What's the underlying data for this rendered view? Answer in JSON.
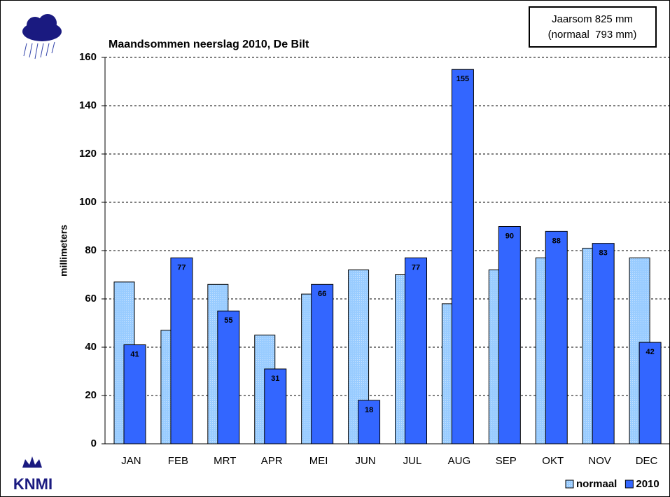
{
  "chart_data": {
    "type": "bar",
    "title": "Maandsommen neerslag 2010, De Bilt",
    "y_label": "millimeters",
    "annotation": [
      "Jaarsom 825 mm",
      "(normaal  793 mm)"
    ],
    "logo_text": "KNMI",
    "categories": [
      "JAN",
      "FEB",
      "MRT",
      "APR",
      "MEI",
      "JUN",
      "JUL",
      "AUG",
      "SEP",
      "OKT",
      "NOV",
      "DEC"
    ],
    "series": [
      {
        "name": "normaal",
        "color": "#99ccff",
        "values": [
          67,
          47,
          66,
          45,
          62,
          72,
          70,
          58,
          72,
          77,
          81,
          77
        ]
      },
      {
        "name": "2010",
        "color": "#3366ff",
        "values": [
          41,
          77,
          55,
          31,
          66,
          18,
          77,
          155,
          90,
          88,
          83,
          42
        ],
        "data_labels": true
      }
    ],
    "ylim": [
      0,
      160
    ],
    "yticks": [
      0,
      20,
      40,
      60,
      80,
      100,
      120,
      140,
      160
    ],
    "grid": true,
    "legend": "bottom-right"
  }
}
